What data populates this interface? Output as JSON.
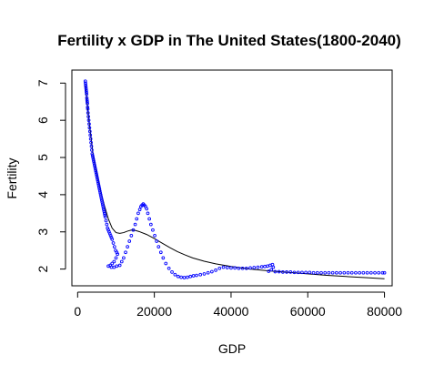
{
  "chart_data": {
    "type": "scatter",
    "title": "Fertility x GDP in The United States(1800-2040)",
    "xlabel": "GDP",
    "ylabel": "Fertility",
    "xlim": [
      -1500,
      82000
    ],
    "ylim": [
      1.55,
      7.35
    ],
    "xticks": [
      0,
      20000,
      40000,
      60000,
      80000
    ],
    "xtick_labels": [
      "0",
      "20000",
      "40000",
      "60000",
      "80000"
    ],
    "yticks": [
      2,
      3,
      4,
      5,
      6,
      7
    ],
    "ytick_labels": [
      "2",
      "3",
      "4",
      "5",
      "6",
      "7"
    ],
    "grid": false,
    "legend": "none",
    "point_color": "#0000ff",
    "line_color": "#000000",
    "series": [
      {
        "type": "scatter",
        "points": [
          [
            2000,
            7.05
          ],
          [
            2050,
            7.0
          ],
          [
            2100,
            6.95
          ],
          [
            2150,
            6.9
          ],
          [
            2200,
            6.85
          ],
          [
            2250,
            6.8
          ],
          [
            2300,
            6.75
          ],
          [
            2350,
            6.7
          ],
          [
            2400,
            6.6
          ],
          [
            2450,
            6.55
          ],
          [
            2500,
            6.5
          ],
          [
            2550,
            6.45
          ],
          [
            2600,
            6.35
          ],
          [
            2650,
            6.3
          ],
          [
            2700,
            6.2
          ],
          [
            2800,
            6.1
          ],
          [
            2900,
            6.0
          ],
          [
            3000,
            5.9
          ],
          [
            3100,
            5.8
          ],
          [
            3200,
            5.7
          ],
          [
            3300,
            5.6
          ],
          [
            3400,
            5.5
          ],
          [
            3500,
            5.4
          ],
          [
            3600,
            5.3
          ],
          [
            3700,
            5.2
          ],
          [
            3800,
            5.1
          ],
          [
            3900,
            5.05
          ],
          [
            4000,
            5.0
          ],
          [
            4100,
            4.95
          ],
          [
            4200,
            4.9
          ],
          [
            4300,
            4.85
          ],
          [
            4400,
            4.8
          ],
          [
            4500,
            4.75
          ],
          [
            4600,
            4.7
          ],
          [
            4700,
            4.65
          ],
          [
            4800,
            4.6
          ],
          [
            4900,
            4.55
          ],
          [
            5000,
            4.5
          ],
          [
            5100,
            4.45
          ],
          [
            5200,
            4.4
          ],
          [
            5300,
            4.35
          ],
          [
            5400,
            4.3
          ],
          [
            5500,
            4.25
          ],
          [
            5600,
            4.2
          ],
          [
            5700,
            4.15
          ],
          [
            5800,
            4.1
          ],
          [
            5900,
            4.05
          ],
          [
            6000,
            4.0
          ],
          [
            6100,
            3.95
          ],
          [
            6200,
            3.9
          ],
          [
            6300,
            3.85
          ],
          [
            6400,
            3.8
          ],
          [
            6500,
            3.75
          ],
          [
            6600,
            3.7
          ],
          [
            6700,
            3.65
          ],
          [
            6800,
            3.6
          ],
          [
            6900,
            3.55
          ],
          [
            7000,
            3.5
          ],
          [
            7100,
            3.45
          ],
          [
            7200,
            3.4
          ],
          [
            7400,
            3.3
          ],
          [
            7600,
            3.2
          ],
          [
            7800,
            3.1
          ],
          [
            8000,
            3.05
          ],
          [
            8200,
            3.0
          ],
          [
            8400,
            2.95
          ],
          [
            8600,
            2.9
          ],
          [
            8800,
            2.85
          ],
          [
            9000,
            2.8
          ],
          [
            9300,
            2.7
          ],
          [
            9600,
            2.6
          ],
          [
            9900,
            2.5
          ],
          [
            10200,
            2.45
          ],
          [
            10400,
            2.4
          ],
          [
            10000,
            2.3
          ],
          [
            9500,
            2.2
          ],
          [
            9000,
            2.15
          ],
          [
            8500,
            2.1
          ],
          [
            8000,
            2.08
          ],
          [
            8800,
            2.05
          ],
          [
            9500,
            2.05
          ],
          [
            10200,
            2.08
          ],
          [
            11000,
            2.1
          ],
          [
            11500,
            2.2
          ],
          [
            12000,
            2.3
          ],
          [
            12500,
            2.45
          ],
          [
            13000,
            2.6
          ],
          [
            13500,
            2.75
          ],
          [
            14000,
            2.9
          ],
          [
            14500,
            3.05
          ],
          [
            15000,
            3.2
          ],
          [
            15400,
            3.35
          ],
          [
            15800,
            3.5
          ],
          [
            16200,
            3.6
          ],
          [
            16500,
            3.68
          ],
          [
            16800,
            3.72
          ],
          [
            17100,
            3.75
          ],
          [
            17400,
            3.72
          ],
          [
            17700,
            3.68
          ],
          [
            18000,
            3.62
          ],
          [
            18300,
            3.5
          ],
          [
            18700,
            3.35
          ],
          [
            19100,
            3.2
          ],
          [
            19600,
            3.05
          ],
          [
            20100,
            2.9
          ],
          [
            20600,
            2.75
          ],
          [
            21100,
            2.6
          ],
          [
            21700,
            2.45
          ],
          [
            22300,
            2.3
          ],
          [
            23000,
            2.15
          ],
          [
            23800,
            2.02
          ],
          [
            24600,
            1.92
          ],
          [
            25400,
            1.85
          ],
          [
            26200,
            1.8
          ],
          [
            27000,
            1.78
          ],
          [
            27800,
            1.77
          ],
          [
            28600,
            1.78
          ],
          [
            29400,
            1.8
          ],
          [
            30200,
            1.82
          ],
          [
            31000,
            1.83
          ],
          [
            32000,
            1.85
          ],
          [
            33000,
            1.87
          ],
          [
            34000,
            1.9
          ],
          [
            35000,
            1.93
          ],
          [
            36000,
            1.97
          ],
          [
            37000,
            2.02
          ],
          [
            38000,
            2.05
          ],
          [
            39000,
            2.04
          ],
          [
            40000,
            2.03
          ],
          [
            41000,
            2.03
          ],
          [
            42000,
            2.02
          ],
          [
            43000,
            2.02
          ],
          [
            44000,
            2.02
          ],
          [
            45000,
            2.03
          ],
          [
            46000,
            2.04
          ],
          [
            47000,
            2.05
          ],
          [
            48000,
            2.06
          ],
          [
            48800,
            2.07
          ],
          [
            49500,
            2.08
          ],
          [
            50200,
            2.1
          ],
          [
            50800,
            2.12
          ],
          [
            51000,
            2.05
          ],
          [
            50500,
            1.98
          ],
          [
            49800,
            1.94
          ],
          [
            51500,
            1.93
          ],
          [
            52500,
            1.93
          ],
          [
            53500,
            1.92
          ],
          [
            54500,
            1.92
          ],
          [
            55500,
            1.92
          ],
          [
            56500,
            1.91
          ],
          [
            57500,
            1.91
          ],
          [
            58500,
            1.91
          ],
          [
            59500,
            1.91
          ],
          [
            60500,
            1.91
          ],
          [
            61500,
            1.9
          ],
          [
            62500,
            1.9
          ],
          [
            63500,
            1.9
          ],
          [
            64500,
            1.9
          ],
          [
            65500,
            1.9
          ],
          [
            66500,
            1.9
          ],
          [
            67500,
            1.9
          ],
          [
            68500,
            1.9
          ],
          [
            69500,
            1.9
          ],
          [
            70500,
            1.9
          ],
          [
            71500,
            1.9
          ],
          [
            72500,
            1.9
          ],
          [
            73500,
            1.9
          ],
          [
            74500,
            1.9
          ],
          [
            75500,
            1.9
          ],
          [
            76500,
            1.9
          ],
          [
            77500,
            1.9
          ],
          [
            78500,
            1.9
          ],
          [
            79500,
            1.9
          ],
          [
            80000,
            1.9
          ]
        ]
      },
      {
        "type": "line",
        "points": [
          [
            2000,
            6.95
          ],
          [
            3000,
            5.95
          ],
          [
            4000,
            5.1
          ],
          [
            5000,
            4.55
          ],
          [
            6000,
            4.1
          ],
          [
            7000,
            3.7
          ],
          [
            8000,
            3.35
          ],
          [
            9000,
            3.1
          ],
          [
            10000,
            2.98
          ],
          [
            11000,
            2.96
          ],
          [
            12000,
            2.98
          ],
          [
            13000,
            3.02
          ],
          [
            14000,
            3.05
          ],
          [
            15000,
            3.04
          ],
          [
            16000,
            3.01
          ],
          [
            18000,
            2.93
          ],
          [
            20000,
            2.82
          ],
          [
            22000,
            2.7
          ],
          [
            24000,
            2.58
          ],
          [
            26000,
            2.47
          ],
          [
            28000,
            2.38
          ],
          [
            30000,
            2.3
          ],
          [
            33000,
            2.21
          ],
          [
            36000,
            2.14
          ],
          [
            40000,
            2.07
          ],
          [
            45000,
            2.0
          ],
          [
            50000,
            1.95
          ],
          [
            55000,
            1.91
          ],
          [
            60000,
            1.87
          ],
          [
            65000,
            1.83
          ],
          [
            70000,
            1.8
          ],
          [
            75000,
            1.77
          ],
          [
            80000,
            1.74
          ]
        ]
      }
    ]
  }
}
